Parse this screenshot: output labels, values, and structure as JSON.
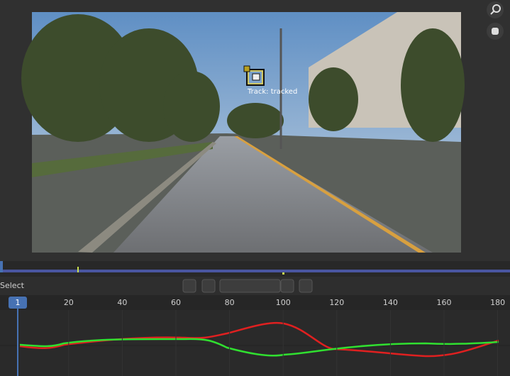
{
  "viewer": {
    "marker_label": "Track: tracked"
  },
  "header": {
    "mode": "Select"
  },
  "timeline": {
    "current_frame": 1,
    "frame_ticks": [
      20,
      40,
      60,
      80,
      100,
      120,
      140,
      160,
      180
    ]
  }
}
